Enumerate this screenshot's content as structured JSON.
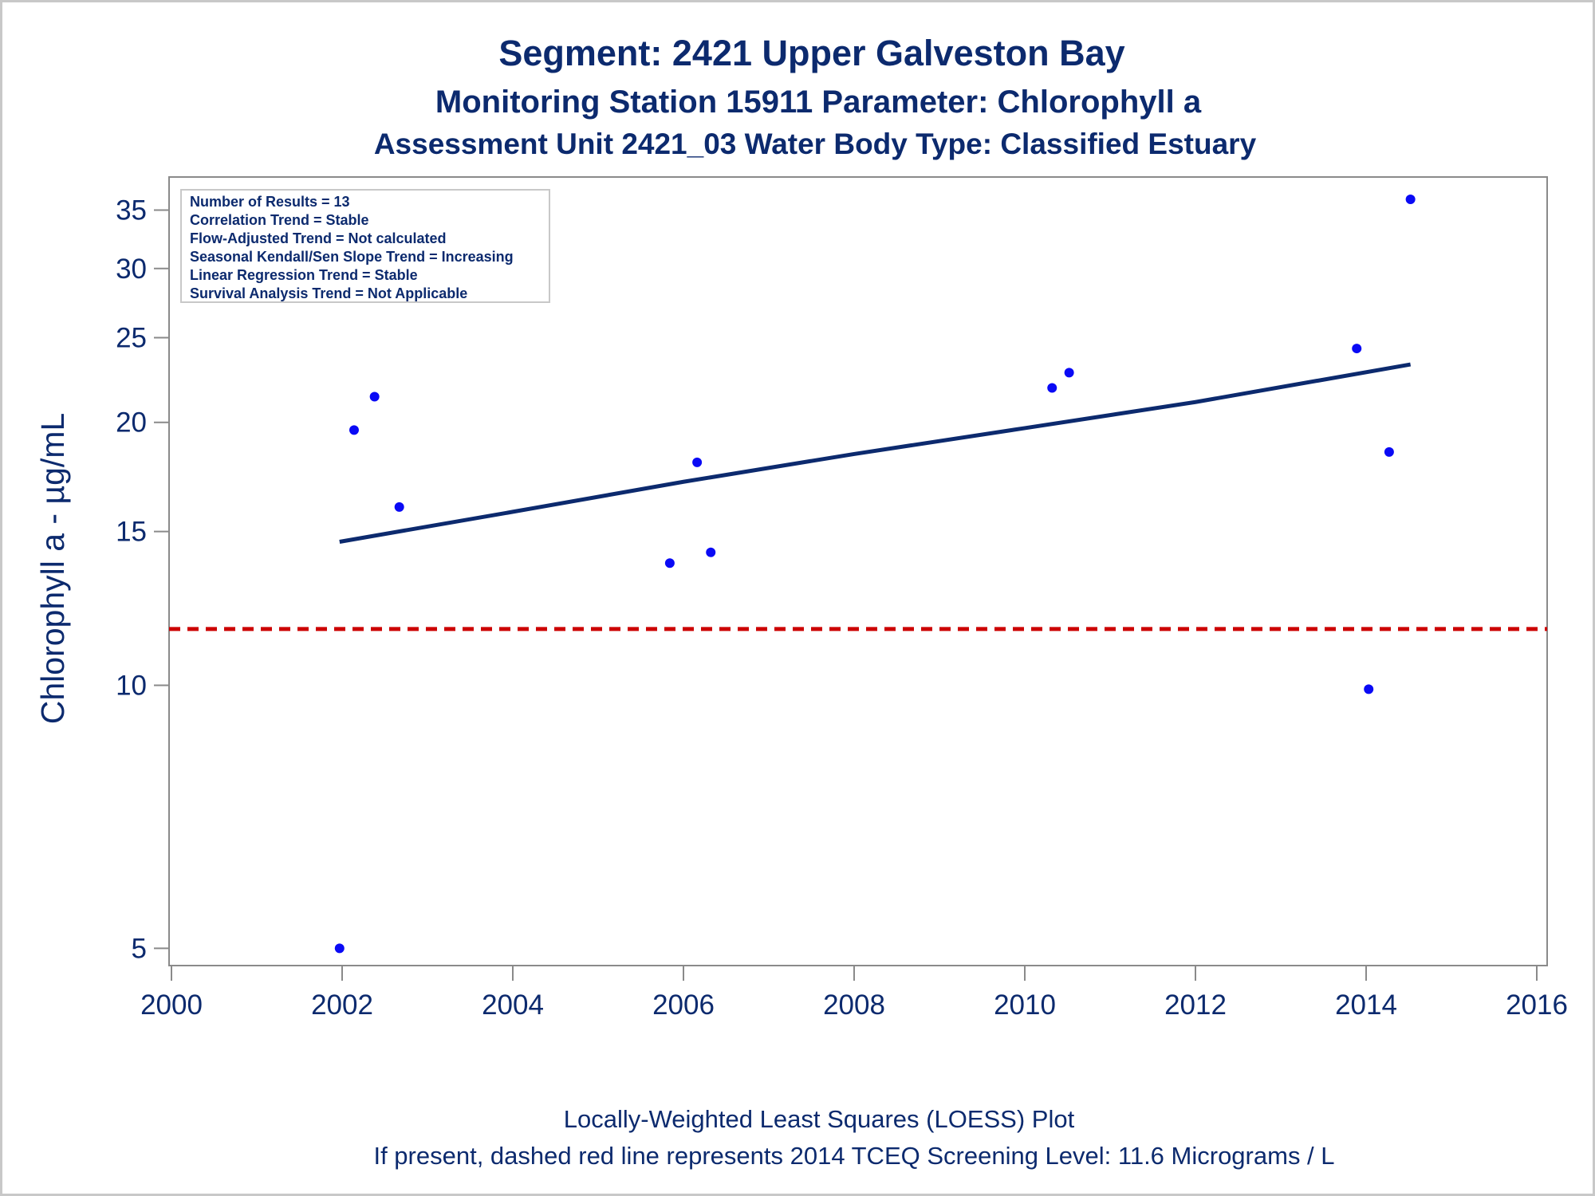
{
  "titles": {
    "line1": "Segment: 2421  Upper Galveston Bay",
    "line2": "Monitoring Station 15911 Parameter: Chlorophyll a",
    "line3": "Assessment Unit 2421_03   Water Body Type: Classified Estuary"
  },
  "stats_box": [
    "Number of Results = 13",
    "Correlation Trend = Stable",
    "Flow-Adjusted Trend = Not calculated",
    "Seasonal Kendall/Sen Slope Trend = Increasing",
    "Linear Regression Trend = Stable",
    "Survival Analysis Trend = Not Applicable"
  ],
  "footnotes": {
    "line1": "Locally-Weighted Least Squares (LOESS) Plot",
    "line2": "If present, dashed red line represents 2014 TCEQ Screening Level: 11.6 Micrograms / L"
  },
  "chart_data": {
    "type": "scatter",
    "ylabel": "Chlorophyll a -  µg/mL",
    "xlabel": "",
    "yscale": "log",
    "xlim": [
      2000,
      2016
    ],
    "ylim": [
      4.9,
      37
    ],
    "xticks": [
      2000,
      2002,
      2004,
      2006,
      2008,
      2010,
      2012,
      2014,
      2016
    ],
    "yticks": [
      5,
      10,
      15,
      20,
      25,
      30,
      35
    ],
    "grid": false,
    "points": [
      {
        "x": 2001.97,
        "y": 5.0
      },
      {
        "x": 2002.14,
        "y": 19.6
      },
      {
        "x": 2002.38,
        "y": 21.4
      },
      {
        "x": 2002.67,
        "y": 16.0
      },
      {
        "x": 2005.84,
        "y": 13.8
      },
      {
        "x": 2006.16,
        "y": 18.0
      },
      {
        "x": 2006.32,
        "y": 14.2
      },
      {
        "x": 2010.32,
        "y": 21.9
      },
      {
        "x": 2010.52,
        "y": 22.8
      },
      {
        "x": 2013.89,
        "y": 24.3
      },
      {
        "x": 2014.03,
        "y": 9.9
      },
      {
        "x": 2014.27,
        "y": 18.5
      },
      {
        "x": 2014.52,
        "y": 36.0
      }
    ],
    "trend_line": {
      "name": "LOESS",
      "x": [
        2001.97,
        2004.0,
        2006.0,
        2008.0,
        2010.0,
        2012.0,
        2014.52
      ],
      "y": [
        14.6,
        15.8,
        17.1,
        18.4,
        19.7,
        21.1,
        23.3
      ]
    },
    "screening_level": {
      "y": 11.6
    },
    "colors": {
      "points": "#0a0af5",
      "trend": "#0c2a6e",
      "screening": "#cc0000",
      "text": "#0c2a6e",
      "axis": "#8a8a8a"
    }
  }
}
